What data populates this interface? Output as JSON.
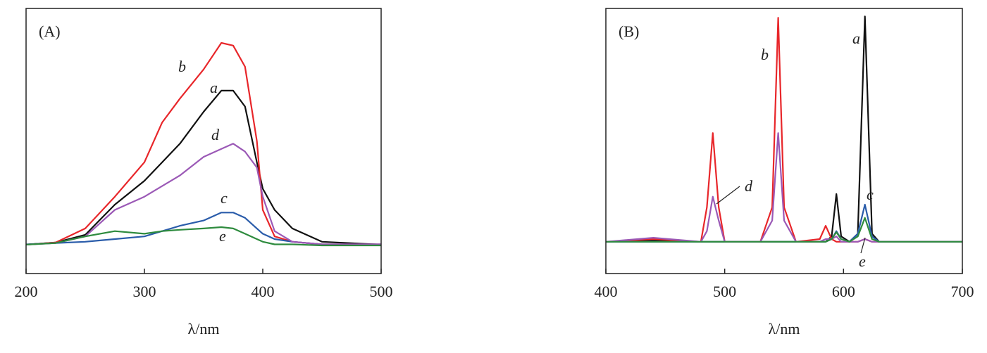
{
  "chart_data": [
    {
      "type": "line",
      "title": "(A)",
      "x_label": "λ/nm",
      "x": [
        200,
        225,
        250,
        275,
        300,
        315,
        330,
        350,
        365,
        375,
        385,
        395,
        400,
        410,
        425,
        450,
        500
      ],
      "xlim": [
        200,
        500
      ],
      "xticks": [
        200,
        300,
        400,
        500
      ],
      "ylim": [
        0,
        100
      ],
      "series": [
        {
          "name": "a",
          "color": "#111111",
          "values": [
            10.9,
            11.7,
            14.6,
            26,
            35,
            42,
            49,
            61,
            69,
            69,
            63,
            42,
            32,
            24,
            17,
            12,
            10.9
          ]
        },
        {
          "name": "b",
          "color": "#e8262a",
          "values": [
            10.9,
            11.7,
            17,
            29,
            42,
            57,
            66,
            77,
            87,
            86,
            78,
            50,
            24,
            14,
            12,
            11,
            11
          ]
        },
        {
          "name": "c",
          "color": "#2a5caa",
          "values": [
            11,
            11.5,
            12,
            13,
            14,
            16,
            18,
            20,
            23,
            23,
            21,
            17,
            15,
            13,
            12,
            11,
            11
          ]
        },
        {
          "name": "d",
          "color": "#9b59b6",
          "values": [
            10.9,
            11.5,
            14,
            24,
            29,
            33,
            37,
            44,
            47,
            49,
            46,
            40,
            29,
            16,
            12,
            11,
            11
          ]
        },
        {
          "name": "e",
          "color": "#2e8b3e",
          "values": [
            10.9,
            11.5,
            14,
            16,
            15,
            16,
            16.5,
            17,
            17.5,
            17,
            15,
            13,
            12,
            11,
            11,
            10.6,
            10.6
          ]
        }
      ]
    },
    {
      "type": "line",
      "title": "(B)",
      "x_label": "λ/nm",
      "x": [
        400,
        440,
        480,
        485,
        490,
        495,
        500,
        530,
        540,
        545,
        550,
        560,
        580,
        585,
        590,
        594,
        598,
        605,
        612,
        618,
        624,
        630,
        650,
        700
      ],
      "xlim": [
        400,
        700
      ],
      "xticks": [
        400,
        500,
        600,
        700
      ],
      "ylim": [
        0,
        100
      ],
      "series": [
        {
          "name": "a",
          "color": "#111111",
          "values": [
            12,
            12.5,
            12,
            12,
            12,
            12,
            12,
            12,
            12,
            12,
            12,
            12,
            12,
            12,
            14,
            30,
            14,
            12,
            15,
            97,
            15,
            12,
            12,
            12
          ]
        },
        {
          "name": "b",
          "color": "#e8262a",
          "values": [
            12,
            13,
            12,
            25,
            53,
            25,
            12,
            12,
            25,
            96.5,
            25,
            12,
            13,
            18,
            13,
            12,
            12,
            12,
            12,
            13,
            12,
            12,
            12,
            12
          ]
        },
        {
          "name": "c",
          "color": "#2a5caa",
          "values": [
            12,
            12,
            12,
            12,
            12,
            12,
            12,
            12,
            12,
            12,
            12,
            12,
            12,
            12,
            13,
            16,
            13,
            12,
            15,
            26,
            14,
            12,
            12,
            12
          ]
        },
        {
          "name": "d",
          "color": "#9b59b6",
          "values": [
            12,
            13.5,
            12,
            16,
            29,
            20,
            12,
            12,
            20,
            53,
            20,
            12,
            12,
            13,
            13,
            14,
            12,
            12,
            12,
            13,
            12,
            12,
            12,
            12
          ]
        },
        {
          "name": "e",
          "color": "#2e8b3e",
          "values": [
            12,
            12,
            12,
            12,
            12,
            12,
            12,
            12,
            12,
            12,
            12,
            12,
            12,
            12,
            13,
            15.6,
            13,
            12,
            14,
            21,
            13,
            12,
            12,
            12
          ]
        }
      ]
    }
  ]
}
